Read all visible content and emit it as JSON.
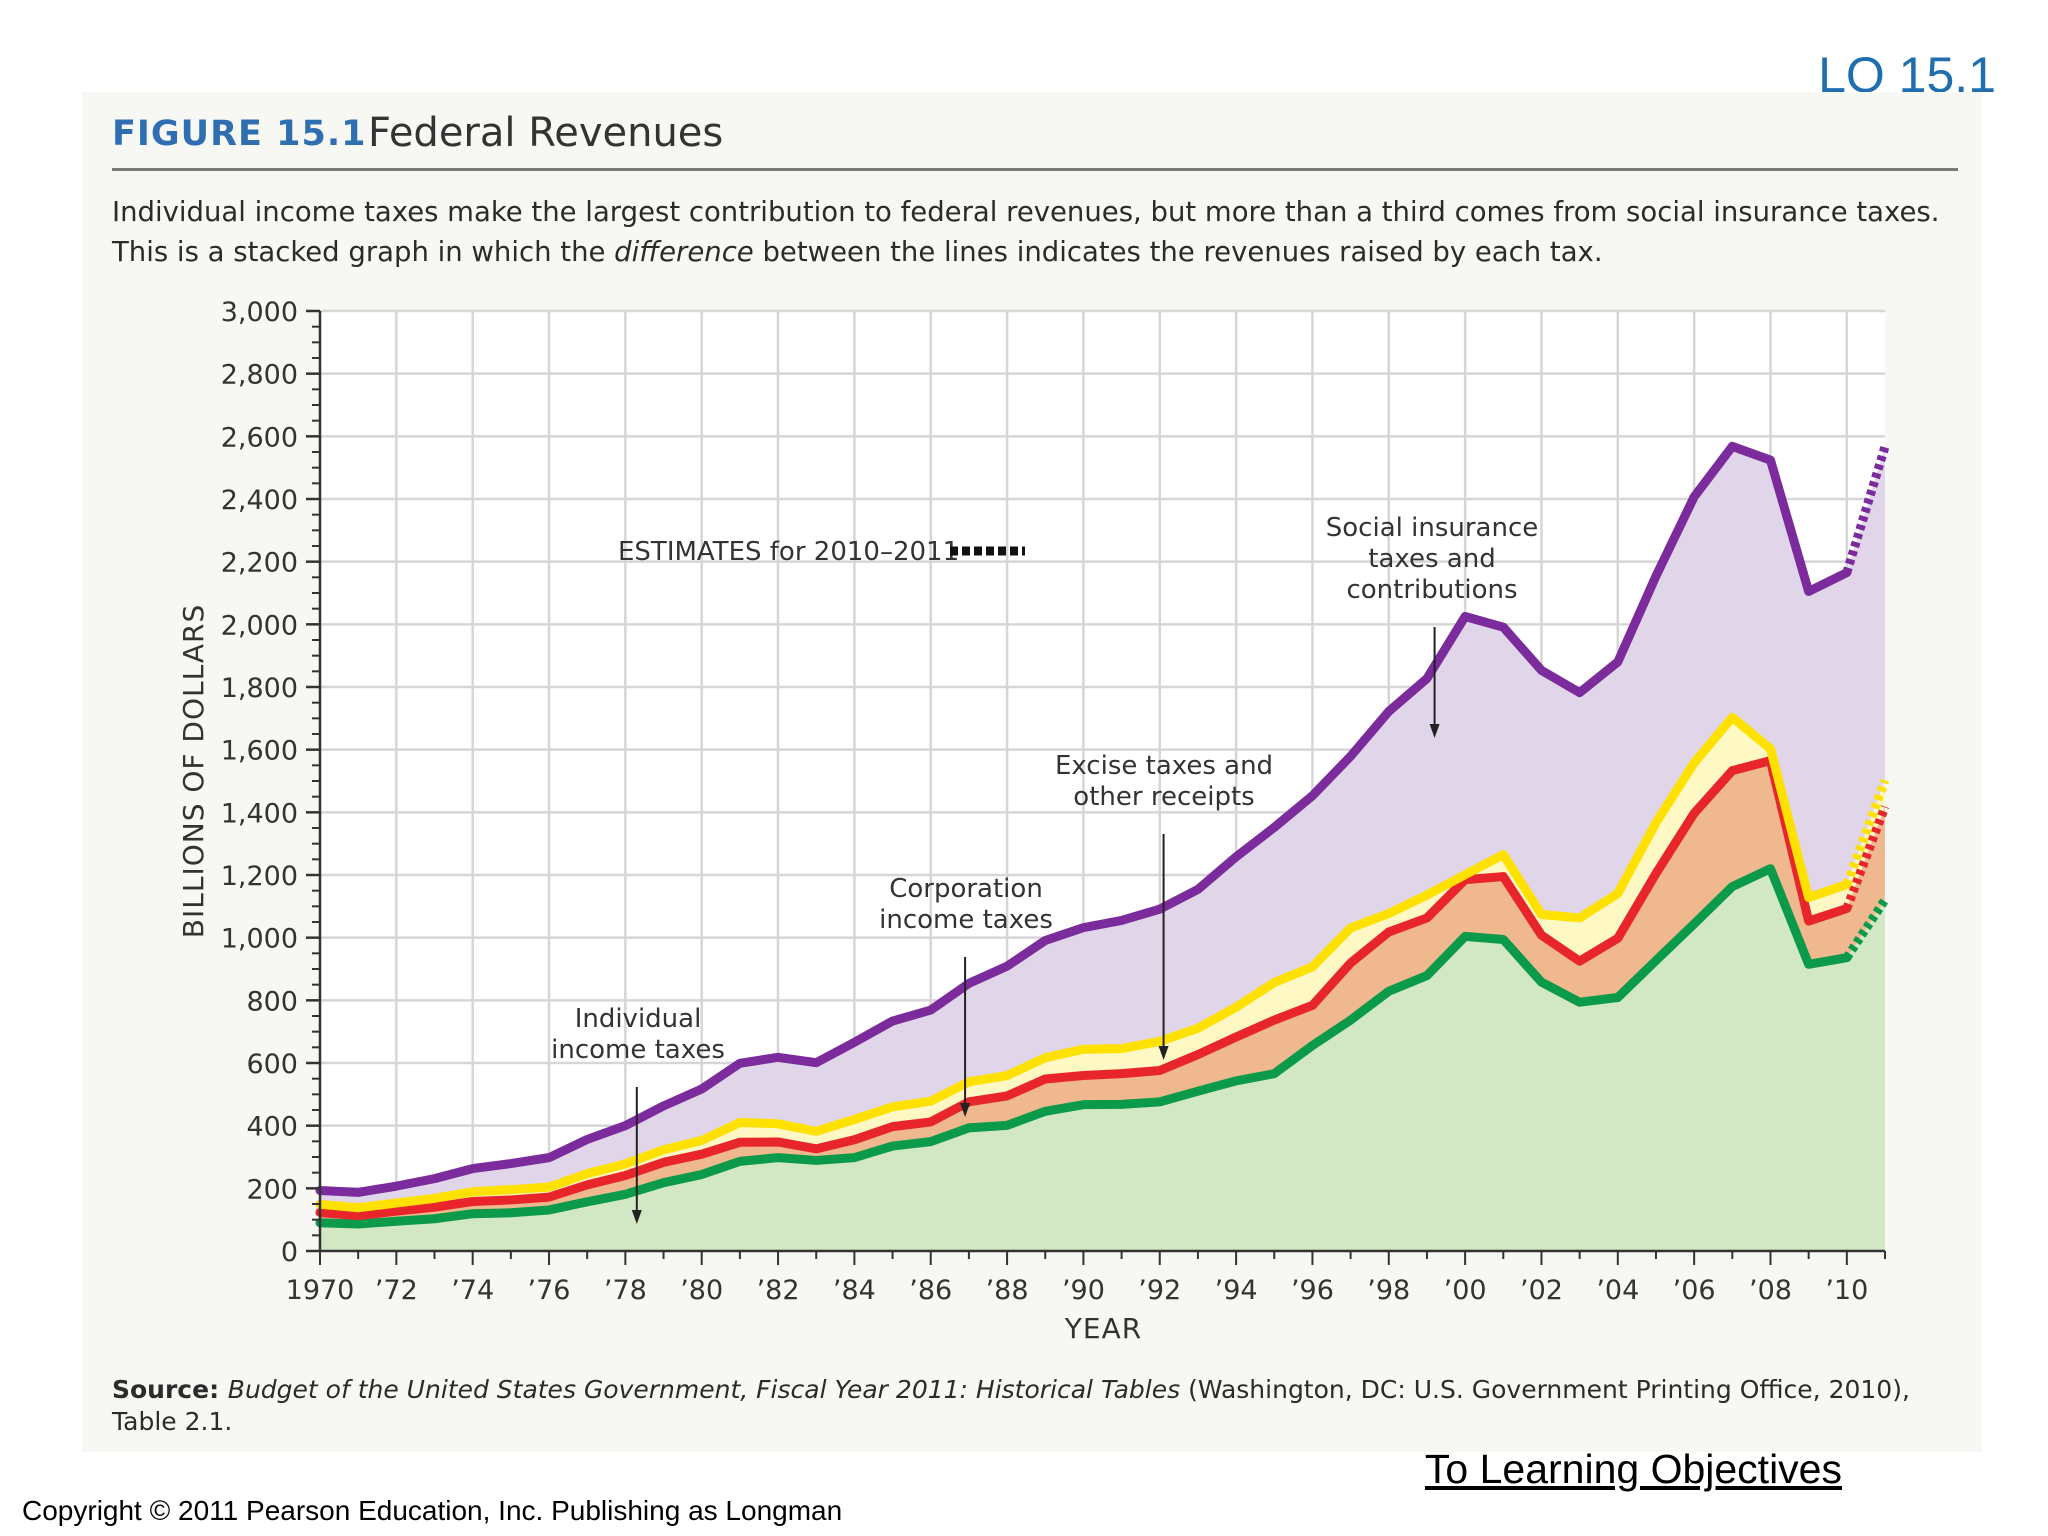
{
  "header": {
    "lo_label": "LO 15.1"
  },
  "figure": {
    "number": "FIGURE 15.1",
    "title": "Federal Revenues",
    "caption_part1": "Individual income taxes make the largest contribution to federal revenues, but more than a third comes from social insurance taxes. This is a stacked graph in which the ",
    "caption_emph": "difference",
    "caption_part2": " between the lines indicates the revenues raised by each tax.",
    "source_label": "Source: ",
    "source_title": "Budget of the United States Government, Fiscal Year 2011: Historical Tables",
    "source_rest": " (Washington, DC: U.S. Government Printing Office, 2010), Table 2.1."
  },
  "footer": {
    "link_label": "To Learning Objectives",
    "copyright": "Copyright © 2011 Pearson Education, Inc. Publishing as Longman"
  },
  "colors": {
    "individual_line": "#0a9a4a",
    "individual_fill": "#d2e7c3",
    "corporation_line": "#e8252a",
    "corporation_fill": "#efb88e",
    "excise_line": "#ffe100",
    "excise_fill": "#fdf8c4",
    "social_line": "#7b2b9c",
    "social_fill": "#e1d6e9",
    "grid": "#d6d6d6",
    "axis": "#333333"
  },
  "chart_data": {
    "type": "area",
    "stacked": true,
    "xlabel": "YEAR",
    "ylabel": "BILLIONS OF DOLLARS",
    "ylim": [
      0,
      3000
    ],
    "xlim": [
      1970,
      2011
    ],
    "yticks": [
      0,
      200,
      400,
      600,
      800,
      1000,
      1200,
      1400,
      1600,
      1800,
      2000,
      2200,
      2400,
      2600,
      2800,
      3000
    ],
    "ytick_labels": [
      "0",
      "200",
      "400",
      "600",
      "800",
      "1,000",
      "1,200",
      "1,400",
      "1,600",
      "1,800",
      "2,000",
      "2,200",
      "2,400",
      "2,600",
      "2,800",
      "3,000"
    ],
    "xtick_years": [
      1970,
      1972,
      1974,
      1976,
      1978,
      1980,
      1982,
      1984,
      1986,
      1988,
      1990,
      1992,
      1994,
      1996,
      1998,
      2000,
      2002,
      2004,
      2006,
      2008,
      2010
    ],
    "xtick_labels": [
      "1970",
      "’72",
      "’74",
      "’76",
      "’78",
      "’80",
      "’82",
      "’84",
      "’86",
      "’88",
      "’90",
      "’92",
      "’94",
      "’96",
      "’98",
      "’00",
      "’02",
      "’04",
      "’06",
      "’08",
      "’10"
    ],
    "x": [
      1970,
      1971,
      1972,
      1973,
      1974,
      1975,
      1976,
      1977,
      1978,
      1979,
      1980,
      1981,
      1982,
      1983,
      1984,
      1985,
      1986,
      1987,
      1988,
      1989,
      1990,
      1991,
      1992,
      1993,
      1994,
      1995,
      1996,
      1997,
      1998,
      1999,
      2000,
      2001,
      2002,
      2003,
      2004,
      2005,
      2006,
      2007,
      2008,
      2009,
      2010,
      2011
    ],
    "estimate_from": 2010,
    "estimates_label": "ESTIMATES for 2010–2011",
    "series": [
      {
        "name": "Individual income taxes",
        "cumulative": [
          90,
          86,
          95,
          103,
          119,
          122,
          131,
          157,
          181,
          218,
          244,
          286,
          298,
          289,
          298,
          335,
          349,
          393,
          401,
          446,
          467,
          468,
          476,
          510,
          543,
          566,
          656,
          737,
          829,
          879,
          1004,
          994,
          858,
          794,
          809,
          927,
          1044,
          1163,
          1220,
          915,
          936,
          1121
        ]
      },
      {
        "name": "Corporation income taxes",
        "cumulative": [
          123,
          113,
          127,
          140,
          158,
          163,
          172,
          211,
          241,
          283,
          309,
          347,
          348,
          326,
          355,
          397,
          412,
          476,
          495,
          549,
          560,
          566,
          576,
          627,
          683,
          737,
          784,
          919,
          1018,
          1063,
          1185,
          1195,
          1008,
          925,
          998,
          1205,
          1397,
          1533,
          1565,
          1053,
          1093,
          1418
        ]
      },
      {
        "name": "Excise taxes and other receipts",
        "cumulative": [
          149,
          138,
          153,
          168,
          189,
          196,
          204,
          247,
          278,
          323,
          353,
          410,
          406,
          382,
          420,
          460,
          478,
          540,
          560,
          617,
          644,
          646,
          669,
          711,
          778,
          857,
          907,
          1031,
          1077,
          1136,
          1201,
          1265,
          1074,
          1063,
          1141,
          1367,
          1558,
          1703,
          1603,
          1128,
          1170,
          1502
        ]
      },
      {
        "name": "Social insurance taxes and contributions",
        "cumulative": [
          193,
          187,
          207,
          231,
          263,
          279,
          298,
          356,
          400,
          463,
          517,
          599,
          618,
          601,
          666,
          734,
          769,
          854,
          909,
          991,
          1032,
          1055,
          1091,
          1154,
          1258,
          1352,
          1453,
          1579,
          1722,
          1827,
          2025,
          1991,
          1853,
          1782,
          1880,
          2154,
          2407,
          2568,
          2524,
          2105,
          2165,
          2567
        ]
      }
    ],
    "annotations": [
      {
        "lines": [
          "Individual",
          "income taxes"
        ],
        "x": 1978.3,
        "y": 90
      },
      {
        "lines": [
          "Corporation",
          "income taxes"
        ],
        "x": 1986.9,
        "y": 430
      },
      {
        "lines": [
          "Excise taxes and",
          "other receipts"
        ],
        "x": 1992.1,
        "y": 610
      },
      {
        "lines": [
          "Social insurance",
          "taxes and",
          "contributions"
        ],
        "x": 1999.2,
        "y": 1630
      }
    ]
  }
}
